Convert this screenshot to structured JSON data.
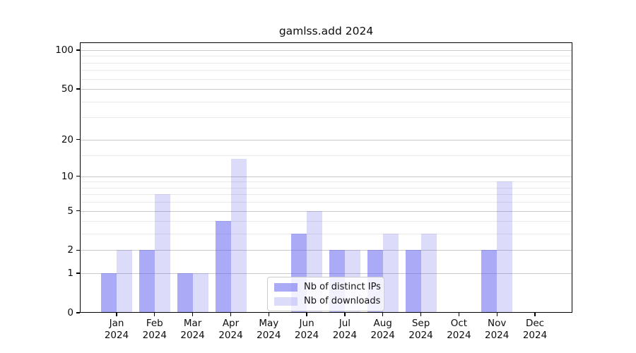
{
  "chart_data": {
    "type": "bar",
    "title": "gamlss.add 2024",
    "categories": [
      "Jan",
      "Feb",
      "Mar",
      "Apr",
      "May",
      "Jun",
      "Jul",
      "Aug",
      "Sep",
      "Oct",
      "Nov",
      "Dec"
    ],
    "year_label": "2024",
    "series": [
      {
        "name": "Nb of distinct IPs",
        "color": "rgba(85,85,240,0.5)",
        "values": [
          1,
          2,
          1,
          4,
          0,
          3,
          2,
          2,
          2,
          0,
          2,
          0
        ]
      },
      {
        "name": "Nb of downloads",
        "color": "rgba(80,80,230,0.2)",
        "values": [
          2,
          7,
          1,
          14,
          0,
          5,
          2,
          3,
          3,
          0,
          9,
          0
        ]
      }
    ],
    "yscale": "log1p",
    "ylim": [
      0,
      114.7
    ],
    "yticks": [
      0,
      1,
      2,
      5,
      10,
      20,
      50,
      100
    ],
    "yticks_minor": [
      3,
      4,
      6,
      7,
      8,
      9,
      15,
      30,
      40,
      60,
      70,
      80,
      90
    ],
    "grid": true,
    "legend_position": "inside-bottom-center",
    "colors": {
      "grid_major": "#c9c9c9",
      "grid_minor": "#e9e9e9",
      "axis": "#000000",
      "background": "#ffffff"
    }
  }
}
